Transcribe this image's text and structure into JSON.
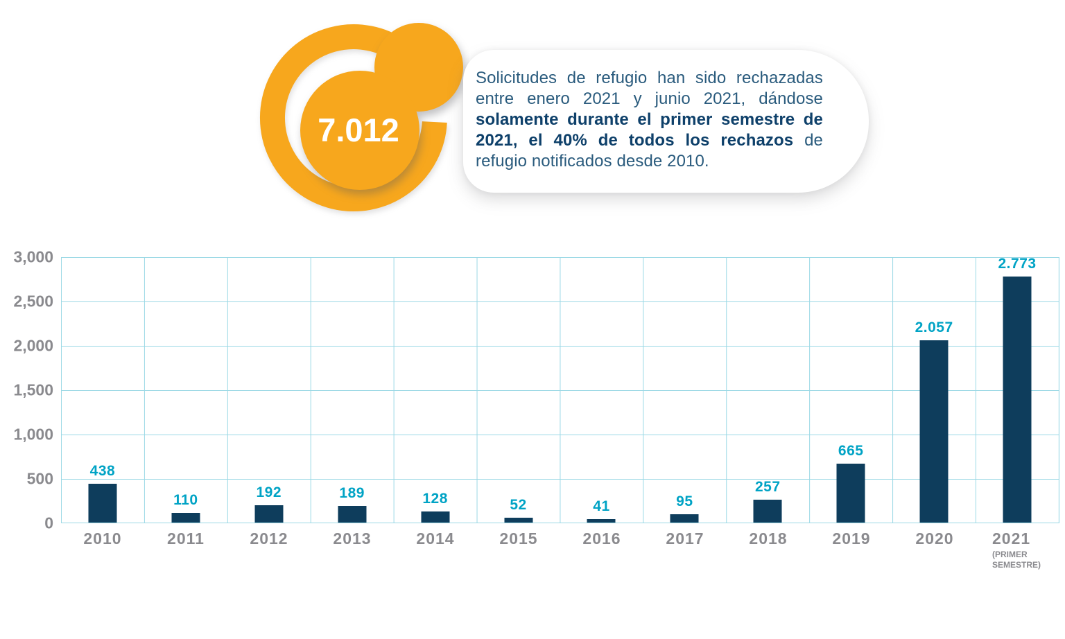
{
  "callout": {
    "value": "7.012",
    "segments": [
      {
        "text": "Solicitudes de refugio han sido rechazadas entre enero 2021 y junio 2021, dándose ",
        "bold": false
      },
      {
        "text": "solamente durante el primer semestre de 2021, el 40% de todos los rechazos",
        "bold": true
      },
      {
        "text": " de refugio notificados desde 2010.",
        "bold": false
      }
    ]
  },
  "chart_data": {
    "type": "bar",
    "title": "",
    "xlabel": "",
    "ylabel": "",
    "categories": [
      "2010",
      "2011",
      "2012",
      "2013",
      "2014",
      "2015",
      "2016",
      "2017",
      "2018",
      "2019",
      "2020",
      "2021"
    ],
    "values": [
      438,
      110,
      192,
      189,
      128,
      52,
      41,
      95,
      257,
      665,
      2057,
      2773
    ],
    "value_labels": [
      "438",
      "110",
      "192",
      "189",
      "128",
      "52",
      "41",
      "95",
      "257",
      "665",
      "2.057",
      "2.773"
    ],
    "last_category_note": "(PRIMER SEMESTRE)",
    "ylim": [
      0,
      3000
    ],
    "ytick_step": 500,
    "ytick_labels_bottom_up": [
      "0",
      "500",
      "1,000",
      "1,500",
      "2,000",
      "2,500",
      "3,000"
    ],
    "grid": true,
    "legend": false,
    "colors": {
      "bar": "#0E3D5C",
      "value_label": "#00A3C5",
      "grid": "#9AD8E5",
      "axis_text": "#8A8A8E",
      "accent_orange": "#F7A71D",
      "callout_text": "#2A5B7D",
      "callout_text_bold": "#0E406A",
      "stat_value_text": "#FFFFFF"
    }
  }
}
